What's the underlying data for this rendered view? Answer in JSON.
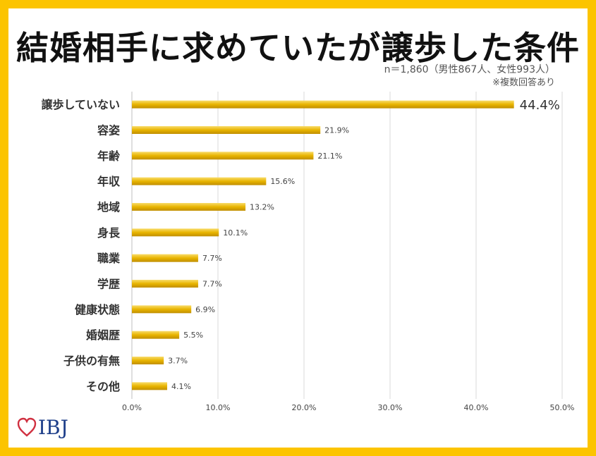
{
  "title": "結婚相手に求めていたが譲歩した条件",
  "sample_note": "n＝1,860（男性867人、女性993人）",
  "multi_answer_note": "※複数回答あり",
  "brand": {
    "logo_text": "IBJ",
    "frame_color": "#fcc400",
    "bar_color": "#e0ac00",
    "logo_color": "#1e3f8a",
    "heart_color": "#d03040"
  },
  "chart_data": {
    "type": "bar",
    "orientation": "horizontal",
    "title": "結婚相手に求めていたが譲歩した条件",
    "categories": [
      "譲歩していない",
      "容姿",
      "年齢",
      "年収",
      "地域",
      "身長",
      "職業",
      "学歴",
      "健康状態",
      "婚姻歴",
      "子供の有無",
      "その他"
    ],
    "values": [
      44.4,
      21.9,
      21.1,
      15.6,
      13.2,
      10.1,
      7.7,
      7.7,
      6.9,
      5.5,
      3.7,
      4.1
    ],
    "value_labels": [
      "44.4%",
      "21.9%",
      "21.1%",
      "15.6%",
      "13.2%",
      "10.1%",
      "7.7%",
      "7.7%",
      "6.9%",
      "5.5%",
      "3.7%",
      "4.1%"
    ],
    "xlim": [
      0,
      50
    ],
    "x_ticks": [
      0,
      10,
      20,
      30,
      40,
      50
    ],
    "x_tick_labels": [
      "0.0%",
      "10.0%",
      "20.0%",
      "30.0%",
      "40.0%",
      "50.0%"
    ],
    "unit": "%",
    "grid": true
  }
}
